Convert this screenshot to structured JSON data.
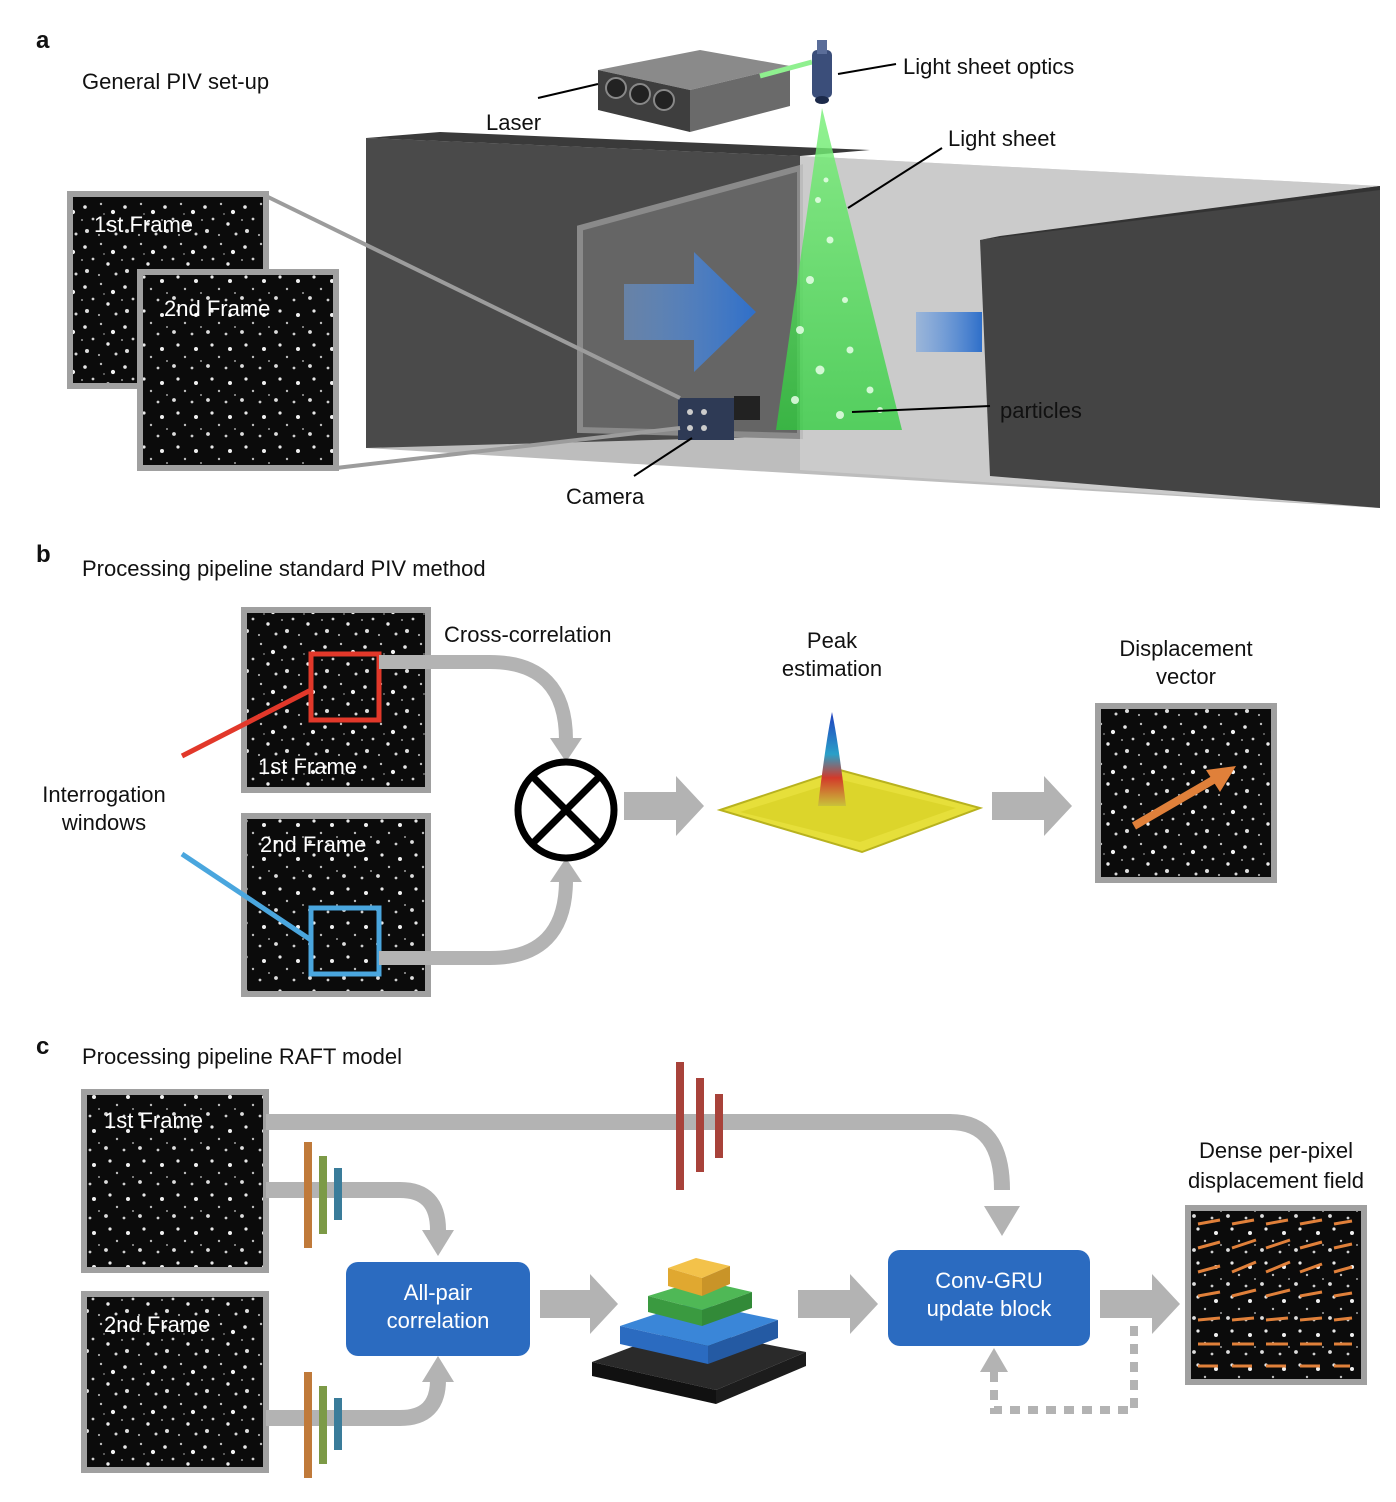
{
  "panel_a": {
    "letter": "a",
    "title": "General PIV set-up",
    "labels": {
      "laser": "Laser",
      "light_sheet_optics": "Light sheet optics",
      "light_sheet": "Light sheet",
      "particles": "particles",
      "camera": "Camera"
    },
    "frames": {
      "first": "1st Frame",
      "second": "2nd Frame"
    }
  },
  "panel_b": {
    "letter": "b",
    "title": "Processing pipeline standard PIV method",
    "labels": {
      "cross_correlation": "Cross-correlation",
      "peak_estimation_1": "Peak",
      "peak_estimation_2": "estimation",
      "displacement_1": "Displacement",
      "displacement_2": "vector",
      "interrogation_1": "Interrogation",
      "interrogation_2": "windows"
    },
    "frames": {
      "first": "1st Frame",
      "second": "2nd Frame"
    }
  },
  "panel_c": {
    "letter": "c",
    "title": "Processing pipeline RAFT model",
    "labels": {
      "all_pair_1": "All-pair",
      "all_pair_2": "correlation",
      "conv_gru_1": "Conv-GRU",
      "conv_gru_2": "update block",
      "dense_1": "Dense per-pixel",
      "dense_2": "displacement field"
    },
    "frames": {
      "first": "1st Frame",
      "second": "2nd Frame"
    }
  },
  "colors": {
    "channel_dark": "#3f3f3f",
    "laser_green": "#2ccf3a",
    "flow_blue": "#2f6fc9",
    "block_blue": "#2b6bc0",
    "arrow_gray": "#b3b3b3",
    "window_red": "#e2382a",
    "window_blue": "#4aa6de",
    "vector_orange": "#e0803a"
  }
}
